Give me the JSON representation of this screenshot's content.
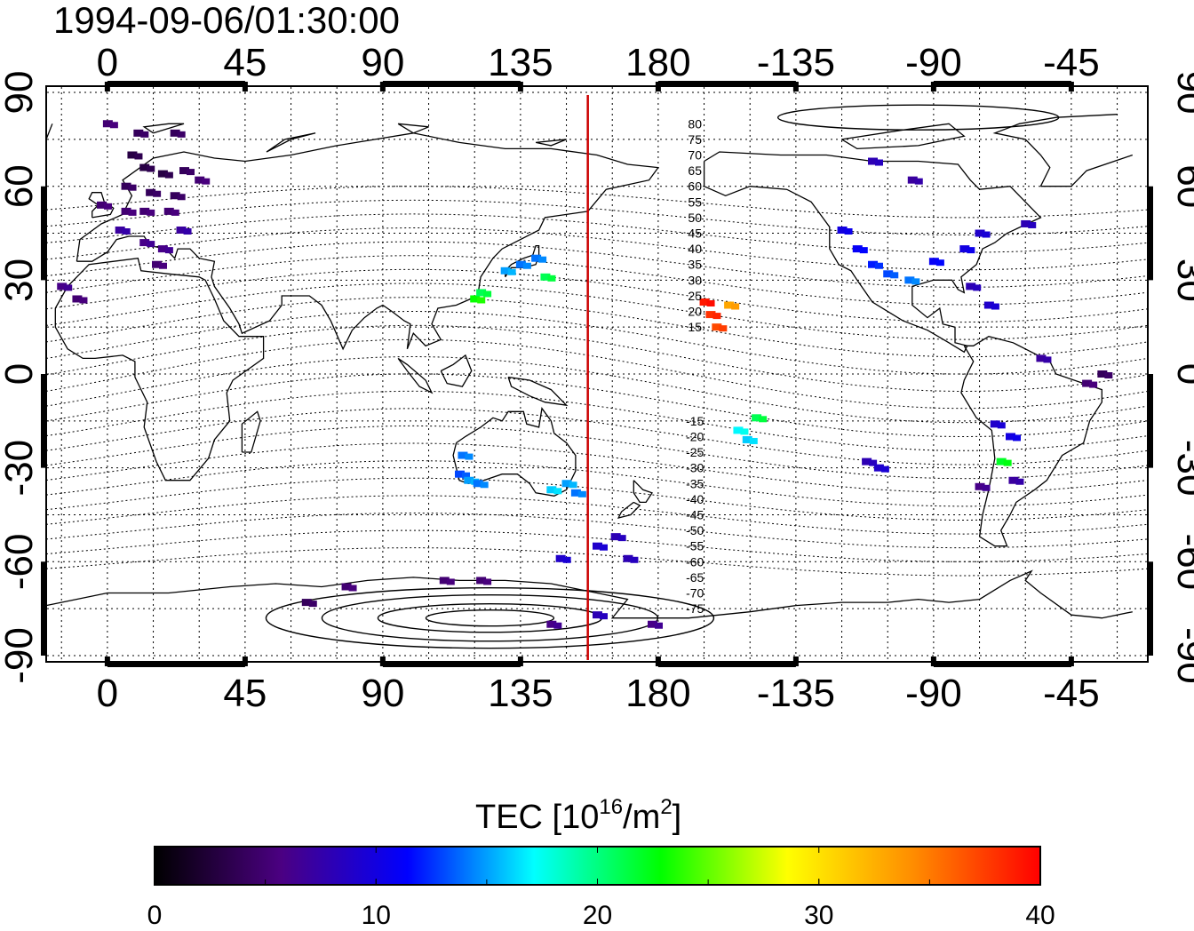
{
  "map": {
    "title": "1994-09-06/01:30:00",
    "lon_ticks": [
      "0",
      "45",
      "90",
      "135",
      "180",
      "-135",
      "-90",
      "-45"
    ],
    "lon_values": [
      0,
      45,
      90,
      135,
      180,
      225,
      270,
      315
    ],
    "lat_ticks": [
      "90",
      "60",
      "30",
      "0",
      "-30",
      "-60",
      "-90"
    ],
    "lat_values": [
      90,
      60,
      30,
      0,
      -30,
      -60,
      -90
    ],
    "lon_range": [
      -20,
      340
    ],
    "lat_range": [
      -92,
      92
    ],
    "terminator_lon": 157,
    "terminator_color": "#cc0000",
    "grid": "dotted, 15 degree spacing",
    "contour_labels_north": [
      "80",
      "75",
      "70",
      "65",
      "60",
      "55",
      "50",
      "45",
      "40",
      "35",
      "30",
      "25",
      "20",
      "15"
    ],
    "contour_labels_south": [
      "-15",
      "-20",
      "-25",
      "-30",
      "-35",
      "-40",
      "-45",
      "-50",
      "-55",
      "-60",
      "-65",
      "-70",
      "-75"
    ]
  },
  "colorbar": {
    "title_main": "TEC  [10",
    "title_sup": "16",
    "title_mid": "/m",
    "title_sup2": "2",
    "title_end": "]",
    "tick_labels": [
      "0",
      "10",
      "20",
      "30",
      "40"
    ],
    "range": [
      0,
      40
    ],
    "colors": [
      "#000000",
      "#4b0082",
      "#0000ff",
      "#00ffff",
      "#00ff00",
      "#ffff00",
      "#ff8c00",
      "#ff0000"
    ]
  },
  "chart_data": {
    "type": "scatter",
    "title": "1994-09-06/01:30:00",
    "xlabel": "",
    "ylabel": "",
    "xlim": [
      -20,
      340
    ],
    "ylim": [
      -92,
      92
    ],
    "value_label": "TEC [10^16/m^2]",
    "value_range": [
      0,
      40
    ],
    "points": [
      {
        "lon": -10,
        "lat": 24,
        "tec": 5
      },
      {
        "lon": -15,
        "lat": 28,
        "tec": 6
      },
      {
        "lon": 0,
        "lat": 80,
        "tec": 5
      },
      {
        "lon": 10,
        "lat": 77,
        "tec": 4
      },
      {
        "lon": 22,
        "lat": 77,
        "tec": 4
      },
      {
        "lon": 8,
        "lat": 70,
        "tec": 3
      },
      {
        "lon": 12,
        "lat": 66,
        "tec": 3
      },
      {
        "lon": 18,
        "lat": 64,
        "tec": 3
      },
      {
        "lon": 25,
        "lat": 65,
        "tec": 4
      },
      {
        "lon": 30,
        "lat": 62,
        "tec": 5
      },
      {
        "lon": 6,
        "lat": 60,
        "tec": 4
      },
      {
        "lon": 14,
        "lat": 58,
        "tec": 4
      },
      {
        "lon": 22,
        "lat": 57,
        "tec": 4
      },
      {
        "lon": -2,
        "lat": 54,
        "tec": 5
      },
      {
        "lon": 6,
        "lat": 52,
        "tec": 5
      },
      {
        "lon": 12,
        "lat": 52,
        "tec": 5
      },
      {
        "lon": 20,
        "lat": 52,
        "tec": 5
      },
      {
        "lon": 4,
        "lat": 46,
        "tec": 7
      },
      {
        "lon": 12,
        "lat": 42,
        "tec": 6
      },
      {
        "lon": 18,
        "lat": 40,
        "tec": 6
      },
      {
        "lon": 24,
        "lat": 46,
        "tec": 7
      },
      {
        "lon": 16,
        "lat": 35,
        "tec": 5
      },
      {
        "lon": 130,
        "lat": 33,
        "tec": 15
      },
      {
        "lon": 135,
        "lat": 35,
        "tec": 14
      },
      {
        "lon": 140,
        "lat": 37,
        "tec": 14
      },
      {
        "lon": 143,
        "lat": 31,
        "tec": 21
      },
      {
        "lon": 120,
        "lat": 24,
        "tec": 23
      },
      {
        "lon": 122,
        "lat": 26,
        "tec": 21
      },
      {
        "lon": 115,
        "lat": -32,
        "tec": 13
      },
      {
        "lon": 116,
        "lat": -26,
        "tec": 14
      },
      {
        "lon": 118,
        "lat": -34,
        "tec": 15
      },
      {
        "lon": 121,
        "lat": -35,
        "tec": 14
      },
      {
        "lon": 145,
        "lat": -37,
        "tec": 16
      },
      {
        "lon": 150,
        "lat": -35,
        "tec": 15
      },
      {
        "lon": 153,
        "lat": -38,
        "tec": 14
      },
      {
        "lon": 166,
        "lat": -52,
        "tec": 8
      },
      {
        "lon": 160,
        "lat": -55,
        "tec": 9
      },
      {
        "lon": 148,
        "lat": -59,
        "tec": 9
      },
      {
        "lon": 170,
        "lat": -59,
        "tec": 8
      },
      {
        "lon": 78,
        "lat": -68,
        "tec": 5
      },
      {
        "lon": 65,
        "lat": -73,
        "tec": 4
      },
      {
        "lon": 110,
        "lat": -66,
        "tec": 5
      },
      {
        "lon": 122,
        "lat": -66,
        "tec": 5
      },
      {
        "lon": 145,
        "lat": -80,
        "tec": 6
      },
      {
        "lon": 160,
        "lat": -77,
        "tec": 8
      },
      {
        "lon": 178,
        "lat": -80,
        "tec": 6
      },
      {
        "lon": 195,
        "lat": 23,
        "tec": 39
      },
      {
        "lon": 197,
        "lat": 19,
        "tec": 38
      },
      {
        "lon": 199,
        "lat": 15,
        "tec": 37
      },
      {
        "lon": 203,
        "lat": 22,
        "tec": 33
      },
      {
        "lon": 206,
        "lat": -18,
        "tec": 17
      },
      {
        "lon": 209,
        "lat": -21,
        "tec": 16
      },
      {
        "lon": 212,
        "lat": -14,
        "tec": 21
      },
      {
        "lon": 240,
        "lat": 46,
        "tec": 10
      },
      {
        "lon": 245,
        "lat": 40,
        "tec": 11
      },
      {
        "lon": 250,
        "lat": 35,
        "tec": 12
      },
      {
        "lon": 255,
        "lat": 32,
        "tec": 13
      },
      {
        "lon": 262,
        "lat": 30,
        "tec": 14
      },
      {
        "lon": 270,
        "lat": 36,
        "tec": 11
      },
      {
        "lon": 280,
        "lat": 40,
        "tec": 10
      },
      {
        "lon": 285,
        "lat": 45,
        "tec": 9
      },
      {
        "lon": 300,
        "lat": 48,
        "tec": 8
      },
      {
        "lon": 250,
        "lat": 68,
        "tec": 8
      },
      {
        "lon": 263,
        "lat": 62,
        "tec": 7
      },
      {
        "lon": 282,
        "lat": 28,
        "tec": 8
      },
      {
        "lon": 288,
        "lat": 22,
        "tec": 9
      },
      {
        "lon": 305,
        "lat": 5,
        "tec": 7
      },
      {
        "lon": 320,
        "lat": -3,
        "tec": 5
      },
      {
        "lon": 325,
        "lat": 0,
        "tec": 4
      },
      {
        "lon": 290,
        "lat": -16,
        "tec": 9
      },
      {
        "lon": 295,
        "lat": -20,
        "tec": 10
      },
      {
        "lon": 292,
        "lat": -28,
        "tec": 22
      },
      {
        "lon": 296,
        "lat": -34,
        "tec": 7
      },
      {
        "lon": 285,
        "lat": -36,
        "tec": 6
      },
      {
        "lon": 248,
        "lat": -28,
        "tec": 8
      },
      {
        "lon": 252,
        "lat": -30,
        "tec": 9
      }
    ]
  }
}
